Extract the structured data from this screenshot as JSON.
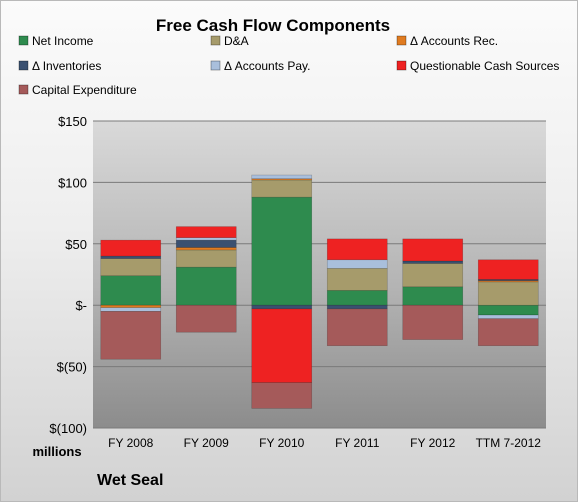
{
  "company": "Wet Seal",
  "chart_data": {
    "type": "bar",
    "stacked": true,
    "title": "Free Cash Flow Components",
    "ylabel": "millions",
    "xlabel": "",
    "categories": [
      "FY 2008",
      "FY 2009",
      "FY 2010",
      "FY 2011",
      "FY 2012",
      "TTM 7-2012"
    ],
    "ylim": [
      -100,
      150
    ],
    "yticks": [
      150,
      100,
      50,
      0,
      -50,
      -100
    ],
    "ytick_labels": [
      "$150",
      "$100",
      "$50",
      "$-",
      "$(50)",
      "$(100)"
    ],
    "grid": true,
    "legend_position": "top",
    "series": [
      {
        "name": "Net Income",
        "color": "#2e8b4e",
        "values": [
          24,
          31,
          88,
          12,
          15,
          -8
        ]
      },
      {
        "name": "D&A",
        "color": "#a69b6b",
        "values": [
          14,
          14,
          14,
          18,
          19,
          19
        ]
      },
      {
        "name": "Δ Accounts Rec.",
        "color": "#e07b20",
        "values": [
          -2,
          2,
          1,
          0,
          0,
          1
        ]
      },
      {
        "name": "Δ Inventories",
        "color": "#3a5070",
        "values": [
          2,
          6,
          -3,
          -3,
          2,
          1
        ]
      },
      {
        "name": "Δ Accounts Pay.",
        "color": "#a9bfdc",
        "values": [
          -3,
          2,
          3,
          7,
          0,
          -3
        ]
      },
      {
        "name": "Questionable Cash Sources",
        "color": "#ee2222",
        "values": [
          13,
          9,
          -60,
          17,
          18,
          16
        ]
      },
      {
        "name": "Capital Expenditure",
        "color": "#a55a5a",
        "values": [
          -39,
          -22,
          -21,
          -30,
          -28,
          -22
        ]
      }
    ]
  }
}
